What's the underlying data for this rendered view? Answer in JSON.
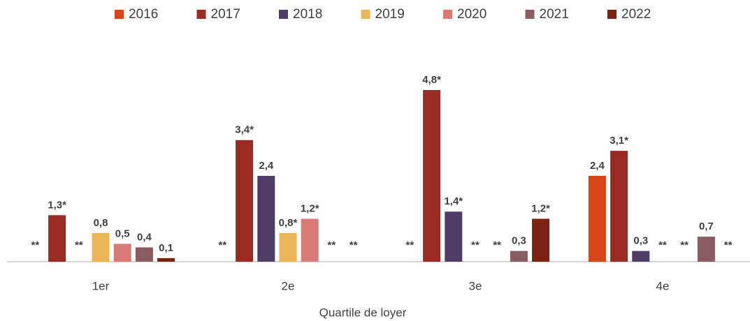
{
  "chart_data": {
    "type": "bar",
    "x_label": "Quartile de loyer",
    "categories": [
      "1er",
      "2e",
      "3e",
      "4e"
    ],
    "series": [
      {
        "name": "2016",
        "color": "#d5461b",
        "values": [
          null,
          null,
          null,
          2.4
        ],
        "value_labels": [
          "**",
          "**",
          "**",
          "2,4"
        ]
      },
      {
        "name": "2017",
        "color": "#9b2b22",
        "values": [
          1.3,
          3.4,
          4.8,
          3.1
        ],
        "value_labels": [
          "1,3*",
          "3,4*",
          "4,8*",
          "3,1*"
        ]
      },
      {
        "name": "2018",
        "color": "#4e3d66",
        "values": [
          null,
          2.4,
          1.4,
          0.3
        ],
        "value_labels": [
          "**",
          "2,4",
          "1,4*",
          "0,3"
        ]
      },
      {
        "name": "2019",
        "color": "#edb55a",
        "values": [
          0.8,
          0.8,
          null,
          null
        ],
        "value_labels": [
          "0,8",
          "0,8*",
          "**",
          "**"
        ]
      },
      {
        "name": "2020",
        "color": "#d97a76",
        "values": [
          0.5,
          1.2,
          null,
          null
        ],
        "value_labels": [
          "0,5",
          "1,2*",
          "**",
          "**"
        ]
      },
      {
        "name": "2021",
        "color": "#8a5c60",
        "values": [
          0.4,
          null,
          0.3,
          0.7
        ],
        "value_labels": [
          "0,4",
          "**",
          "0,3",
          "0,7"
        ]
      },
      {
        "name": "2022",
        "color": "#7a2310",
        "values": [
          0.1,
          null,
          1.2,
          null
        ],
        "value_labels": [
          "0,1",
          "**",
          "1,2*",
          "**"
        ]
      }
    ]
  }
}
